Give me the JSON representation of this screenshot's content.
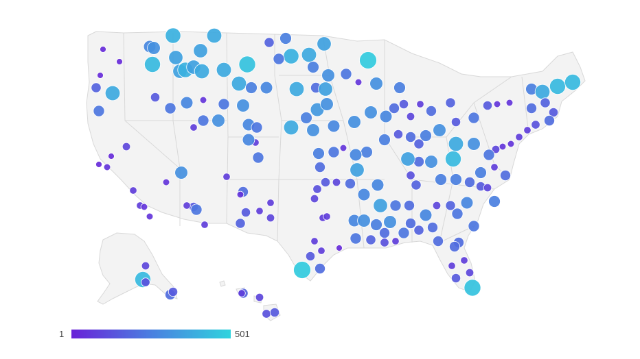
{
  "map": {
    "legend": {
      "min_label": "1",
      "max_label": "501",
      "color_low": "#6a22d8",
      "color_mid": "#4a7fe0",
      "color_high": "#2fd3de"
    },
    "colors": {
      "land": "#f3f3f3",
      "border": "#d8d8d8",
      "marker_stroke": "#ffffff"
    }
  }
}
